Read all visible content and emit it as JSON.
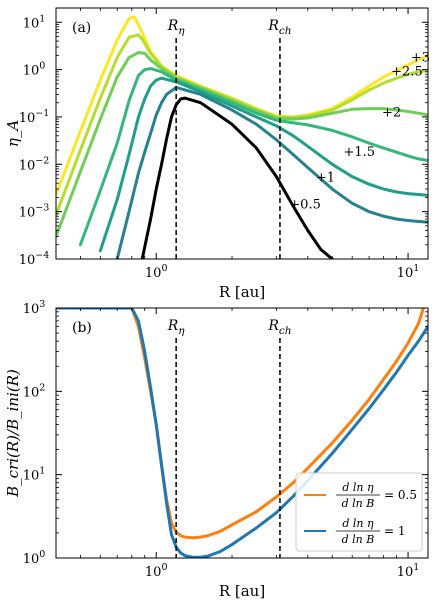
{
  "chart_data": [
    {
      "type": "line",
      "panel_label": "(a)",
      "ylabel": "η_A",
      "xlabel": "R [au]",
      "xscale": "log",
      "yscale": "log",
      "xlim": [
        0.4,
        12
      ],
      "ylim": [
        0.0001,
        20
      ],
      "x_ticks": [
        {
          "v": 1,
          "label": "10",
          "exp": "0"
        },
        {
          "v": 10,
          "label": "10",
          "exp": "1"
        }
      ],
      "y_ticks": [
        {
          "v": 0.0001,
          "label": "10",
          "exp": "−4"
        },
        {
          "v": 0.001,
          "label": "10",
          "exp": "−3"
        },
        {
          "v": 0.01,
          "label": "10",
          "exp": "−2"
        },
        {
          "v": 0.1,
          "label": "10",
          "exp": "−1"
        },
        {
          "v": 1,
          "label": "10",
          "exp": "0"
        },
        {
          "v": 10,
          "label": "10",
          "exp": "1"
        }
      ],
      "vlines": [
        {
          "x": 1.2,
          "label": "R",
          "sub": "η"
        },
        {
          "x": 3.1,
          "label": "R",
          "sub": "ch"
        }
      ],
      "series": [
        {
          "name": "+3",
          "color": "#fde725",
          "label_at": [
            11.2,
            1.9
          ],
          "x": [
            0.4,
            0.5,
            0.6,
            0.7,
            0.78,
            0.82,
            0.88,
            0.95,
            1.05,
            1.2,
            1.5,
            2.0,
            2.5,
            3.0,
            3.5,
            4.0,
            5.0,
            6.0,
            7.0,
            8.0,
            9.0,
            10.0,
            11.0,
            12.0
          ],
          "y": [
            0.0023,
            0.05,
            0.6,
            4.2,
            12,
            13,
            6.0,
            2.4,
            1.2,
            0.75,
            0.45,
            0.25,
            0.15,
            0.105,
            0.1,
            0.11,
            0.15,
            0.26,
            0.45,
            0.7,
            0.95,
            1.25,
            1.6,
            2.0
          ]
        },
        {
          "name": "+2.5",
          "color": "#b5de2b",
          "label_at": [
            9.9,
            0.95
          ],
          "x": [
            0.4,
            0.5,
            0.6,
            0.7,
            0.78,
            0.85,
            0.88,
            0.95,
            1.05,
            1.2,
            1.5,
            2.0,
            2.5,
            3.0,
            3.5,
            4.0,
            5.0,
            6.0,
            7.0,
            8.0,
            9.0,
            10.0,
            11.0,
            12.0
          ],
          "y": [
            0.00085,
            0.02,
            0.25,
            1.8,
            4.8,
            5.4,
            4.4,
            2.2,
            1.15,
            0.7,
            0.43,
            0.24,
            0.145,
            0.1,
            0.097,
            0.105,
            0.14,
            0.23,
            0.37,
            0.52,
            0.66,
            0.8,
            0.9,
            0.95
          ]
        },
        {
          "name": "+2",
          "color": "#6ece58",
          "label_at": [
            8.6,
            0.13
          ],
          "x": [
            0.4,
            0.5,
            0.6,
            0.7,
            0.78,
            0.85,
            0.9,
            0.95,
            1.05,
            1.2,
            1.5,
            2.0,
            2.5,
            3.0,
            3.5,
            4.0,
            5.0,
            6.0,
            7.0,
            8.0,
            9.0,
            10.0,
            11.0,
            12.0
          ],
          "y": [
            0.0003,
            0.007,
            0.09,
            0.7,
            1.8,
            2.3,
            2.2,
            1.6,
            1.05,
            0.66,
            0.41,
            0.22,
            0.135,
            0.095,
            0.09,
            0.095,
            0.12,
            0.145,
            0.15,
            0.15,
            0.14,
            0.13,
            0.12,
            0.11
          ]
        },
        {
          "name": "+1.5",
          "color": "#35b779",
          "label_at": [
            6.4,
            0.019
          ],
          "x": [
            0.5,
            0.6,
            0.7,
            0.78,
            0.85,
            0.9,
            0.95,
            1.05,
            1.2,
            1.5,
            2.0,
            2.5,
            3.0,
            3.5,
            4.0,
            5.0,
            6.0,
            7.0,
            8.0,
            9.0,
            10.0,
            11.0,
            12.0
          ],
          "y": [
            0.0002,
            0.0028,
            0.028,
            0.22,
            0.75,
            1.0,
            1.05,
            0.9,
            0.6,
            0.38,
            0.2,
            0.12,
            0.085,
            0.075,
            0.068,
            0.052,
            0.038,
            0.028,
            0.022,
            0.018,
            0.015,
            0.013,
            0.012
          ]
        },
        {
          "name": "+1",
          "color": "#1f9e89",
          "label_at": [
            4.7,
            0.0055
          ],
          "x": [
            0.6,
            0.7,
            0.78,
            0.85,
            0.9,
            0.95,
            1.0,
            1.05,
            1.2,
            1.5,
            2.0,
            2.5,
            3.0,
            3.5,
            4.0,
            5.0,
            6.0,
            7.0,
            8.0,
            9.0,
            10.0,
            11.0,
            12.0
          ],
          "y": [
            0.00015,
            0.0018,
            0.016,
            0.1,
            0.24,
            0.45,
            0.6,
            0.66,
            0.55,
            0.34,
            0.17,
            0.1,
            0.065,
            0.04,
            0.024,
            0.01,
            0.0055,
            0.0038,
            0.003,
            0.0026,
            0.0024,
            0.0023,
            0.0022
          ]
        },
        {
          "name": "+0.5",
          "color": "#26828e",
          "label_at": [
            3.9,
            0.0015
          ],
          "x": [
            0.7,
            0.78,
            0.85,
            0.9,
            0.95,
            1.0,
            1.05,
            1.1,
            1.2,
            1.5,
            2.0,
            2.5,
            3.0,
            3.5,
            4.0,
            5.0,
            6.0,
            7.0,
            8.0,
            9.0,
            10.0,
            11.0,
            12.0
          ],
          "y": [
            0.0001,
            0.001,
            0.0065,
            0.018,
            0.045,
            0.11,
            0.2,
            0.3,
            0.42,
            0.3,
            0.14,
            0.07,
            0.033,
            0.016,
            0.0085,
            0.003,
            0.0015,
            0.001,
            0.0008,
            0.0007,
            0.00065,
            0.00062,
            0.0006
          ]
        },
        {
          "name": "",
          "color": "#000000",
          "label_at": null,
          "x": [
            0.88,
            0.95,
            1.0,
            1.05,
            1.1,
            1.15,
            1.2,
            1.25,
            1.3,
            1.5,
            2.0,
            2.5,
            3.0,
            3.5,
            4.0,
            4.5,
            5.0
          ],
          "y": [
            0.0001,
            0.0007,
            0.003,
            0.01,
            0.035,
            0.1,
            0.18,
            0.24,
            0.25,
            0.2,
            0.07,
            0.022,
            0.0055,
            0.0013,
            0.0004,
            0.00016,
            0.0001
          ]
        }
      ]
    },
    {
      "type": "line",
      "panel_label": "(b)",
      "ylabel": "B_cri(R)/B_ini(R)",
      "xlabel": "R [au]",
      "xscale": "log",
      "yscale": "log",
      "xlim": [
        0.4,
        12
      ],
      "ylim": [
        1,
        1000
      ],
      "x_ticks": [
        {
          "v": 1,
          "label": "10",
          "exp": "0"
        },
        {
          "v": 10,
          "label": "10",
          "exp": "1"
        }
      ],
      "y_ticks": [
        {
          "v": 1,
          "label": "10",
          "exp": "0"
        },
        {
          "v": 10,
          "label": "10",
          "exp": "1"
        },
        {
          "v": 100,
          "label": "10",
          "exp": "2"
        },
        {
          "v": 1000,
          "label": "10",
          "exp": "3"
        }
      ],
      "vlines": [
        {
          "x": 1.2,
          "label": "R",
          "sub": "η"
        },
        {
          "x": 3.1,
          "label": "R",
          "sub": "ch"
        }
      ],
      "legend_position": "lower-right",
      "series": [
        {
          "name": "dlnη_A/dlnB = 0.5",
          "legend_value": "= 0.5",
          "color": "#ff7f0e",
          "x": [
            0.4,
            0.8,
            0.85,
            0.9,
            0.95,
            1.0,
            1.05,
            1.1,
            1.15,
            1.2,
            1.25,
            1.3,
            1.4,
            1.5,
            1.6,
            1.8,
            2.0,
            2.5,
            3.0,
            3.5,
            4.0,
            5.0,
            6.0,
            7.0,
            8.0,
            9.0,
            10.0,
            11.0,
            11.5
          ],
          "y": [
            1000,
            1000,
            600,
            250,
            100,
            40,
            13,
            5,
            2.6,
            2.05,
            1.85,
            1.78,
            1.75,
            1.78,
            1.85,
            2.1,
            2.5,
            3.6,
            5.4,
            8,
            12,
            24,
            45,
            80,
            140,
            230,
            380,
            650,
            1000
          ]
        },
        {
          "name": "dlnη_A/dlnB = 1",
          "legend_value": "= 1",
          "color": "#1f77b4",
          "x": [
            0.4,
            0.8,
            0.85,
            0.9,
            0.95,
            1.0,
            1.05,
            1.1,
            1.15,
            1.2,
            1.25,
            1.3,
            1.4,
            1.5,
            1.6,
            1.8,
            2.0,
            2.5,
            3.0,
            3.5,
            4.0,
            5.0,
            6.0,
            7.0,
            8.0,
            9.0,
            10.0,
            11.0,
            12.0
          ],
          "y": [
            1000,
            1000,
            700,
            300,
            110,
            40,
            13,
            4.5,
            1.9,
            1.35,
            1.15,
            1.07,
            1.02,
            1.02,
            1.05,
            1.2,
            1.45,
            2.3,
            3.5,
            5.5,
            8.5,
            18,
            35,
            62,
            105,
            170,
            270,
            400,
            600
          ]
        }
      ]
    }
  ]
}
